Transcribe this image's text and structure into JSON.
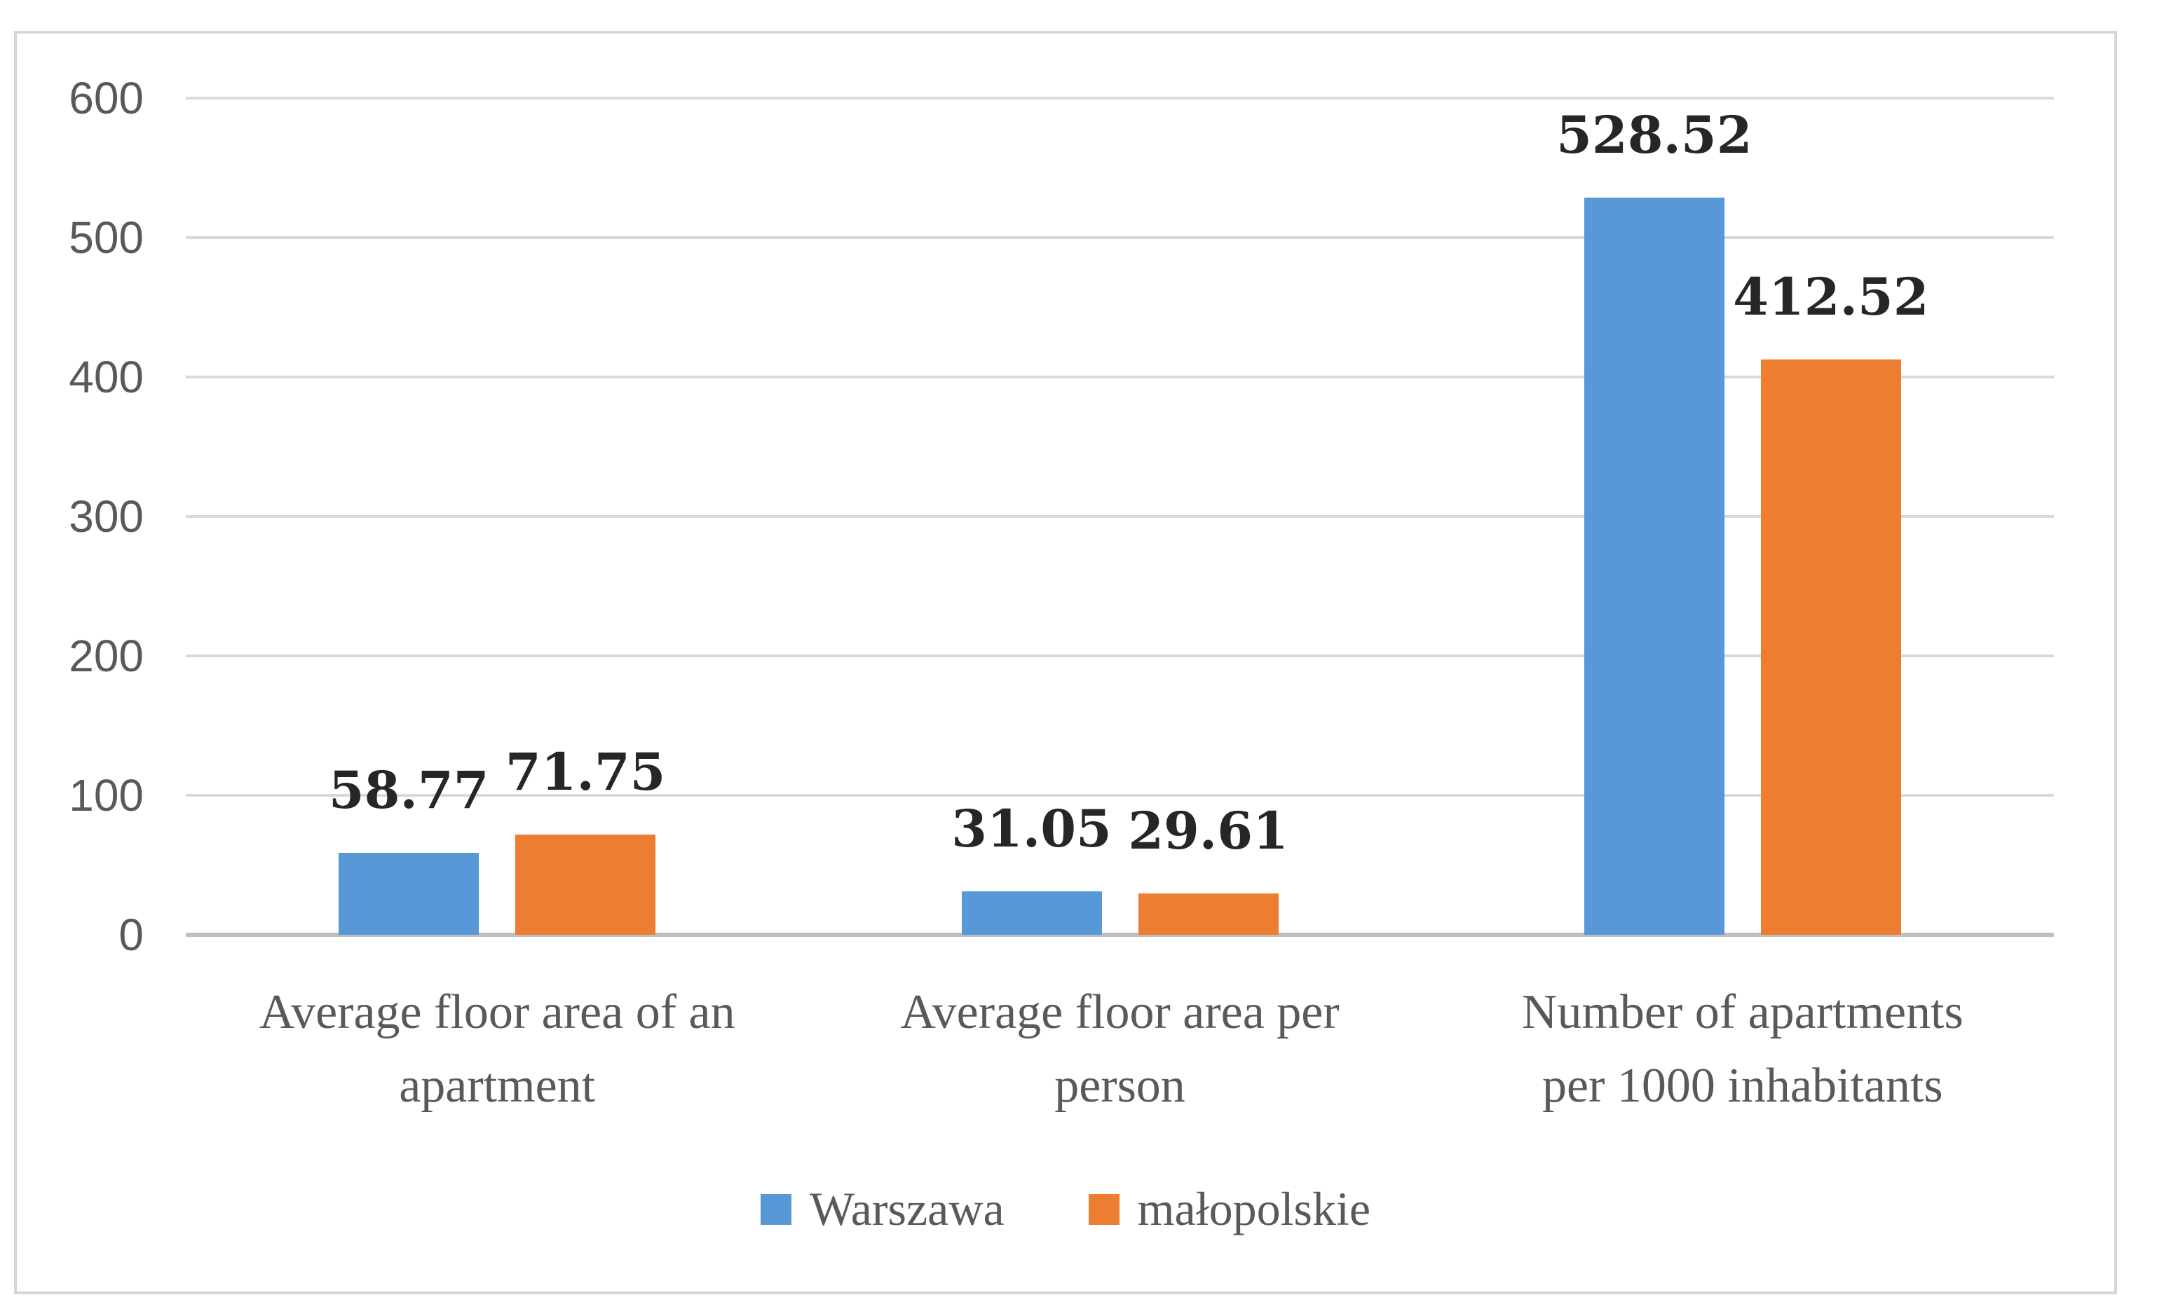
{
  "chart_data": {
    "type": "bar",
    "title": "",
    "categories": [
      "Average floor area of an\napartment",
      "Average floor area per\nperson",
      "Number of apartments\nper 1000 inhabitants"
    ],
    "series": [
      {
        "name": "Warszawa",
        "color": "#5898D6",
        "values": [
          58.77,
          31.05,
          528.52
        ],
        "labels": [
          "58.77",
          "31.05",
          "528.52"
        ]
      },
      {
        "name": "małopolskie",
        "color": "#ED7D31",
        "values": [
          71.75,
          29.61,
          412.52
        ],
        "labels": [
          "71.75",
          "29.61",
          "412.52"
        ]
      }
    ],
    "y_axis": {
      "min": 0,
      "max": 600,
      "step": 100,
      "tick_labels": [
        "0",
        "100",
        "200",
        "300",
        "400",
        "500",
        "600"
      ]
    },
    "grid": true,
    "legend_position": "bottom"
  },
  "colors": {
    "frame_border": "#D6D6D6",
    "gridline": "#D9D9D9",
    "axis_line": "#BFBFBF",
    "tick_text": "#595959",
    "category_text": "#595959",
    "legend_text": "#595959",
    "data_label_text": "#262626",
    "background": "#FFFFFF"
  }
}
